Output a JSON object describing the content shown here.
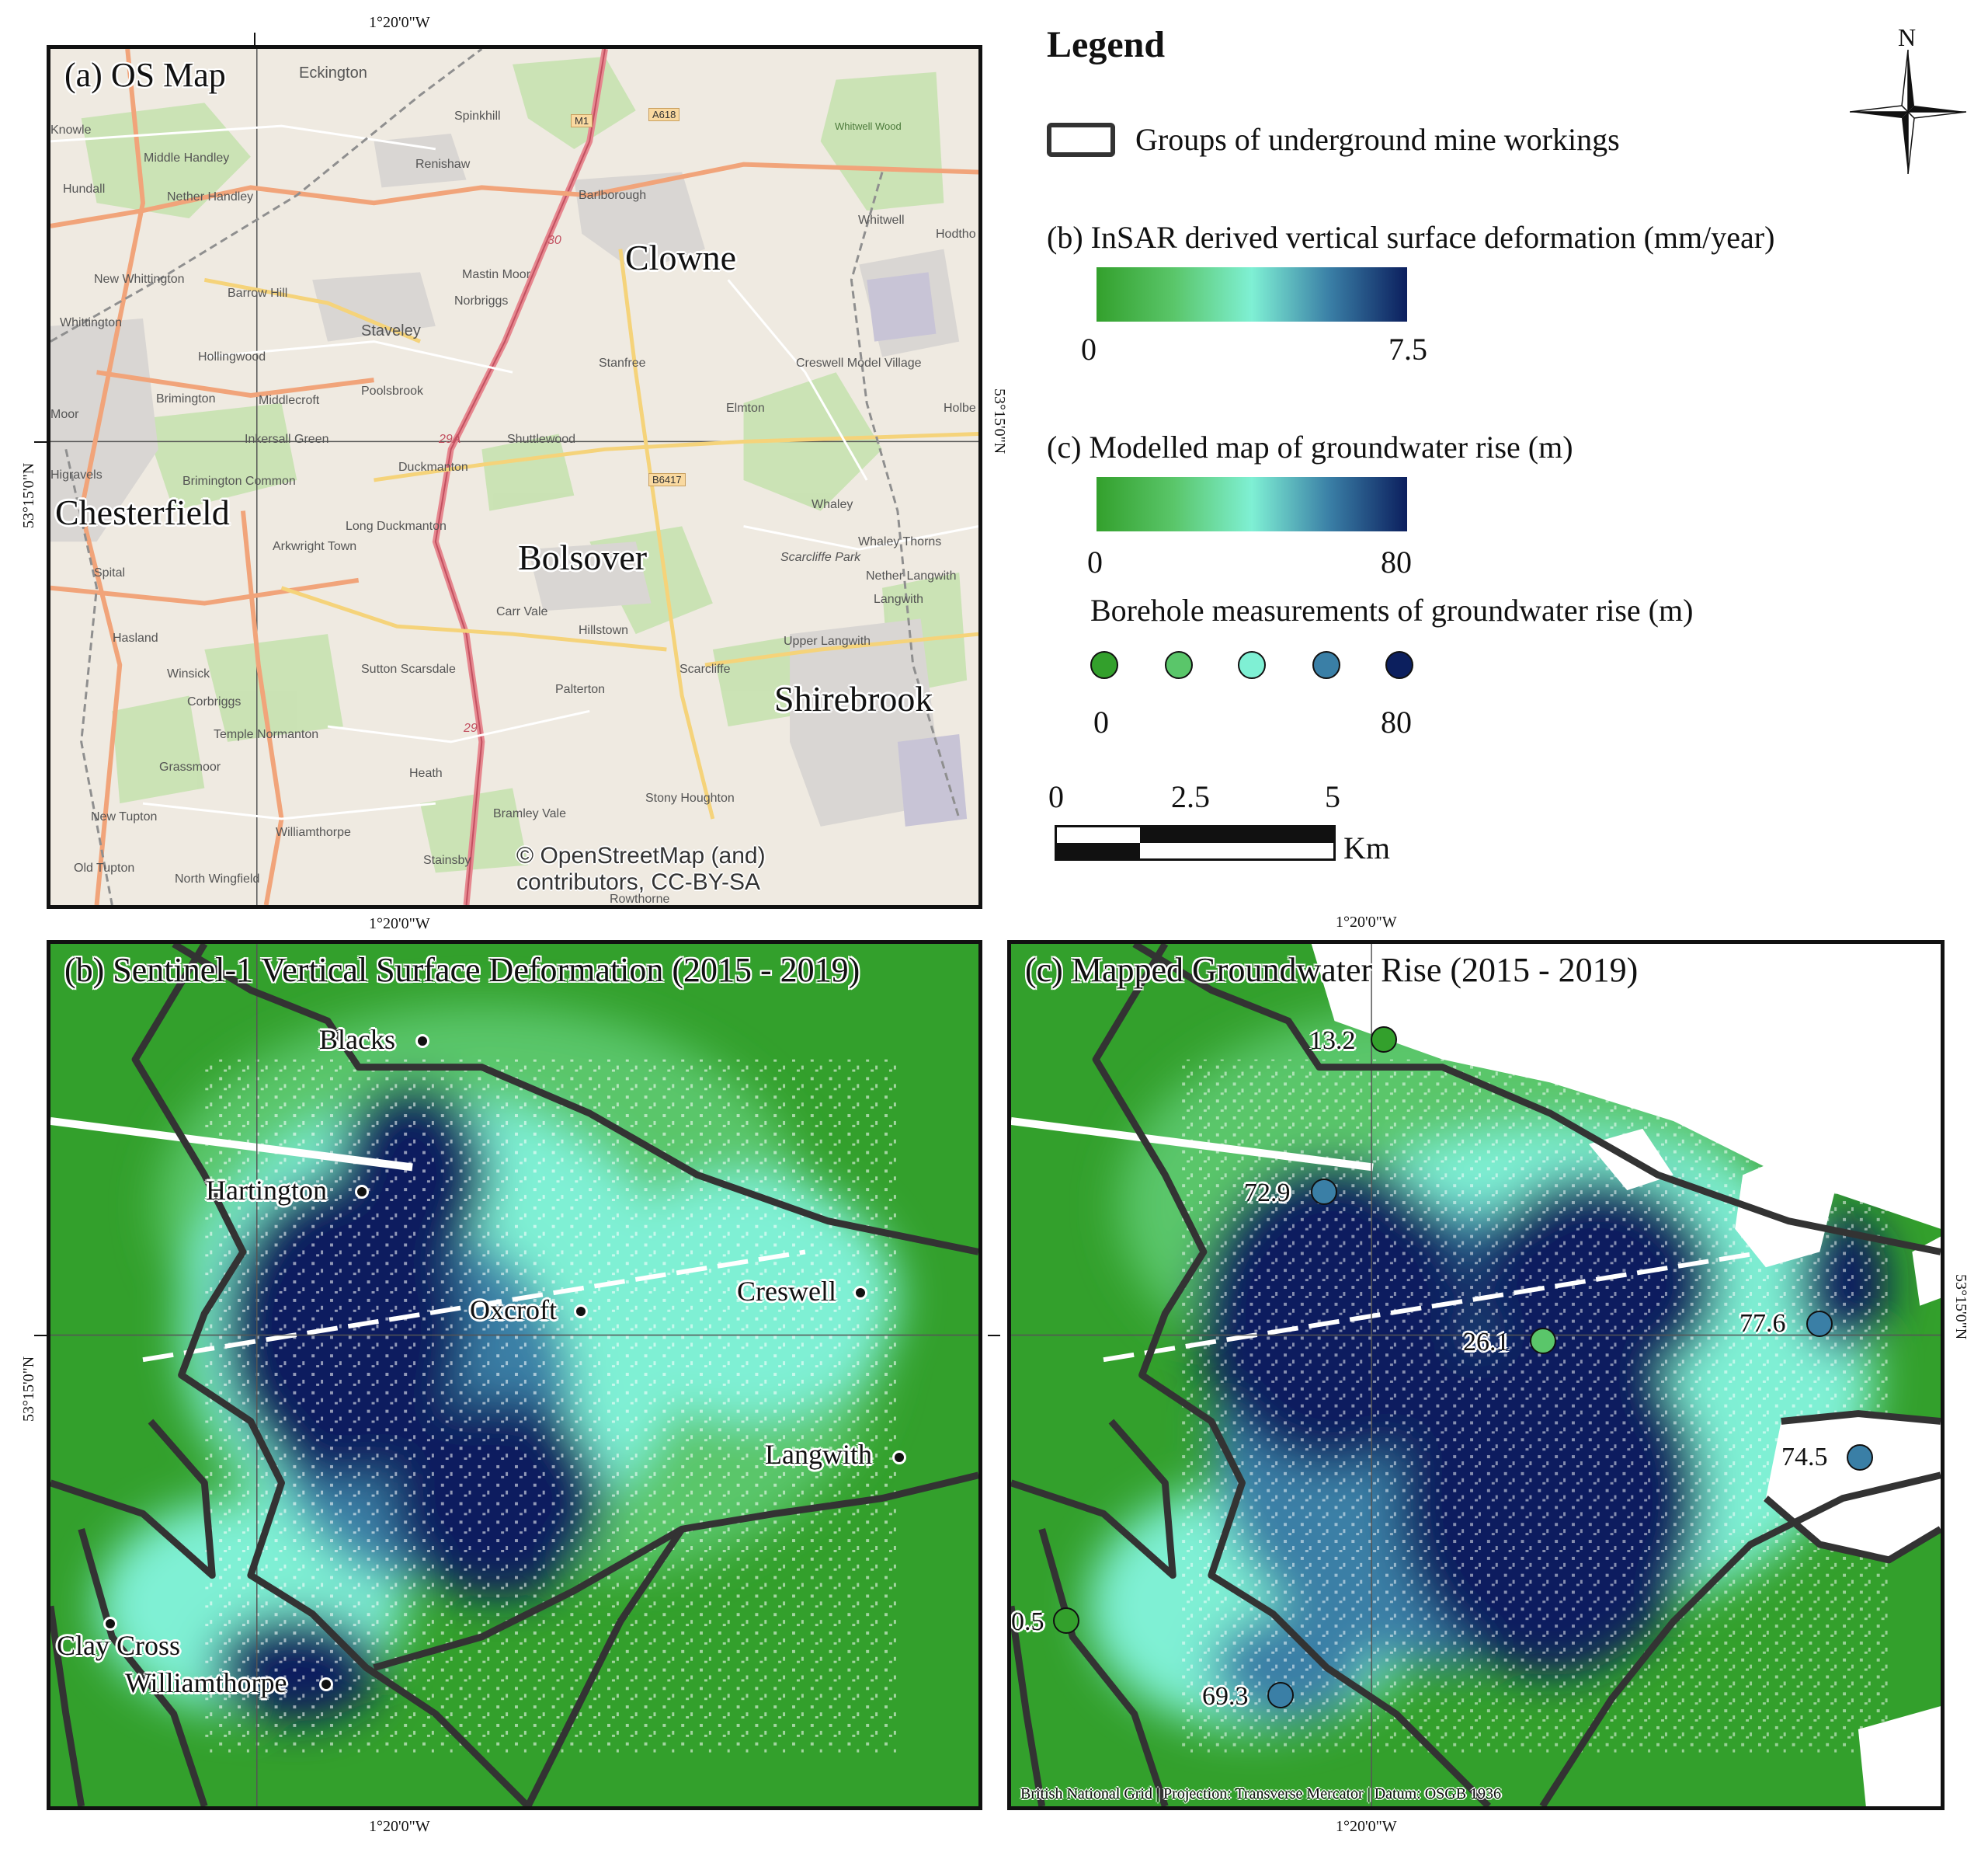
{
  "panel_a": {
    "title": "(a) OS Map",
    "towns": [
      "Clowne",
      "Chesterfield",
      "Bolsover",
      "Shirebrook"
    ],
    "villages": [
      "Eckington",
      "Spinkhill",
      "Renishaw",
      "Middle Handley",
      "Hundall",
      "Nether Handley",
      "Barlborough",
      "Whitwell",
      "Hodtho",
      "New Whittington",
      "Barrow Hill",
      "Mastin Moor",
      "Norbriggs",
      "Whittington",
      "Staveley",
      "Hollingwood",
      "Stanfree",
      "Creswell Model Village",
      "Brimington",
      "Middlecroft",
      "Poolsbrook",
      "Elmton",
      "Holbe",
      "Inkersall Green",
      "Shuttlewood",
      "Duckmanton",
      "Whaley",
      "Brimington Common",
      "Long Duckmanton",
      "Whaley Thorns",
      "Arkwright Town",
      "Scarcliffe Park",
      "Nether Langwith",
      "Langwith",
      "Spital",
      "Carr Vale",
      "Hillstown",
      "Upper Langwith",
      "Hasland",
      "Sutton Scarsdale",
      "Scarcliffe",
      "Winsick",
      "Corbriggs",
      "Palterton",
      "Temple Normanton",
      "Grassmoor",
      "Heath",
      "Stony Houghton",
      "New Tupton",
      "Bramley Vale",
      "Williamthorpe",
      "Stainsby",
      "Old Tupton",
      "North Wingfield",
      "Whitwell Wood",
      "Rowthorne",
      "Moor",
      "Knowle",
      "Higravels"
    ],
    "roads": [
      "M1",
      "A618",
      "B6417"
    ],
    "junctions": [
      "30",
      "29A",
      "29"
    ],
    "attribution": "© OpenStreetMap (and) contributors, CC-BY-SA"
  },
  "panel_b": {
    "title": "(b) Sentinel-1 Vertical Surface Deformation (2015 - 2019)",
    "places": [
      "Blacks",
      "Hartington",
      "Oxcroft",
      "Creswell",
      "Langwith",
      "Clay Cross",
      "Williamthorpe"
    ]
  },
  "panel_c": {
    "title": "(c) Mapped Groundwater Rise (2015 - 2019)",
    "boreholes": [
      {
        "label": "13.2",
        "value": 13.2,
        "color": "#33a02c"
      },
      {
        "label": "72.9",
        "value": 72.9,
        "color": "#3a7fa6"
      },
      {
        "label": "26.1",
        "value": 26.1,
        "color": "#5ac66a"
      },
      {
        "label": "77.6",
        "value": 77.6,
        "color": "#3a7fa6"
      },
      {
        "label": "74.5",
        "value": 74.5,
        "color": "#3a7fa6"
      },
      {
        "label": "0.5",
        "value": 0.5,
        "color": "#33a02c"
      },
      {
        "label": "69.3",
        "value": 69.3,
        "color": "#3a7fa6"
      }
    ],
    "footer": "British National Grid | Projection: Transverse Mercator | Datum: OSGB 1936"
  },
  "coords": {
    "lon": "1°20'0\"W",
    "lat": "53°15'0\"N"
  },
  "legend": {
    "title": "Legend",
    "mine_label": "Groups of underground mine workings",
    "b_title": "(b) InSAR derived vertical surface deformation (mm/year)",
    "b_min": "0",
    "b_max": "7.5",
    "c_title": "(c) Modelled map of groundwater rise (m)",
    "c_min": "0",
    "c_max": "80",
    "bh_title": "Borehole measurements of groundwater rise (m)",
    "bh_min": "0",
    "bh_max": "80",
    "bh_colors": [
      "#33a02c",
      "#5ac66a",
      "#7ff0d4",
      "#3a7fa6",
      "#0c1f5e"
    ],
    "scale_labels": [
      "0",
      "2.5",
      "5"
    ],
    "scale_unit": "Km",
    "north": "N"
  }
}
